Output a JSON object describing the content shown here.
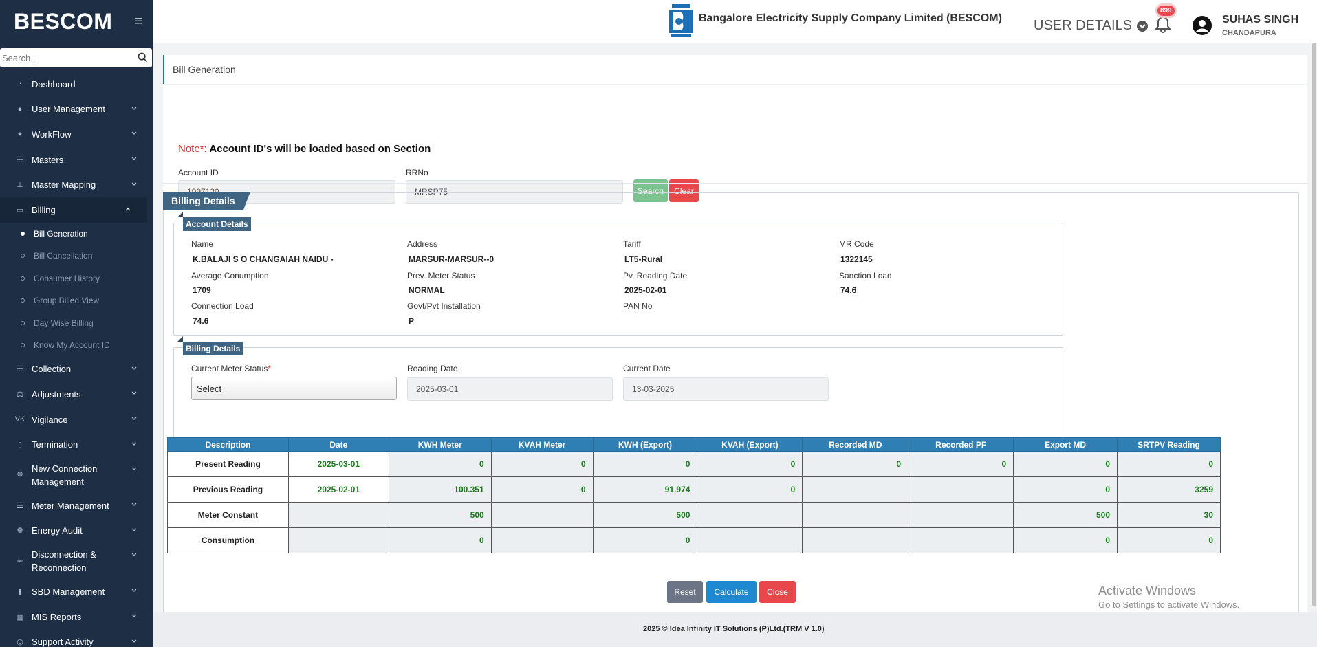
{
  "sidebar": {
    "brand": "BESCOM",
    "search_placeholder": "Search..",
    "items": [
      {
        "label": "Dashboard",
        "icon": "dashboard-icon"
      },
      {
        "label": "User Management",
        "icon": "user-icon"
      },
      {
        "label": "WorkFlow",
        "icon": "user-icon"
      },
      {
        "label": "Masters",
        "icon": "list-icon"
      },
      {
        "label": "Master Mapping",
        "icon": "sitemap-icon"
      },
      {
        "label": "Billing",
        "icon": "monitor-icon"
      },
      {
        "label": "Collection",
        "icon": "list-icon"
      },
      {
        "label": "Adjustments",
        "icon": "scale-icon"
      },
      {
        "label": "Vigilance",
        "icon": "vk-icon"
      },
      {
        "label": "Termination",
        "icon": "trash-icon"
      },
      {
        "label": "New Connection Management",
        "icon": "plus-circle-icon"
      },
      {
        "label": "Meter Management",
        "icon": "list-icon"
      },
      {
        "label": "Energy Audit",
        "icon": "cogs-icon"
      },
      {
        "label": "Disconnection & Reconnection",
        "icon": "link-icon"
      },
      {
        "label": "SBD Management",
        "icon": "sd-card-icon"
      },
      {
        "label": "MIS Reports",
        "icon": "bar-chart-icon"
      },
      {
        "label": "Support Activity",
        "icon": "support-icon"
      }
    ],
    "billing_sub": [
      "Bill Generation",
      "Bill Cancellation",
      "Consumer History",
      "Group Billed View",
      "Day Wise Billing",
      "Know My Account ID"
    ]
  },
  "header": {
    "company": "Bangalore Electricity Supply Company Limited (BESCOM)",
    "user_details": "USER DETAILS",
    "notifications": "899",
    "user_name": "SUHAS SINGH",
    "user_location": "CHANDAPURA"
  },
  "page": {
    "breadcrumb": "Bill Generation",
    "note_prefix": "Note*:",
    "note_text": " Account ID's will be loaded based on Section",
    "account_id_label": "Account ID",
    "account_id_value": "1997120",
    "rrno_label": "RRNo",
    "rrno_value": "MRSP75",
    "search_btn": "Search",
    "clear_btn": "Clear"
  },
  "billing": {
    "title": "Billing Details",
    "account_section_title": "Account Details",
    "account": [
      {
        "label": "Name",
        "value": "K.BALAJI S O CHANGAIAH NAIDU -"
      },
      {
        "label": "Address",
        "value": "MARSUR-MARSUR--0"
      },
      {
        "label": "Tariff",
        "value": "LT5-Rural"
      },
      {
        "label": "MR Code",
        "value": "1322145"
      },
      {
        "label": "Average Conumption",
        "value": "1709"
      },
      {
        "label": "Prev. Meter Status",
        "value": "NORMAL"
      },
      {
        "label": "Pv. Reading Date",
        "value": "2025-02-01"
      },
      {
        "label": "Sanction Load",
        "value": "74.6"
      },
      {
        "label": "Connection Load",
        "value": "74.6"
      },
      {
        "label": "Govt/Pvt Installation",
        "value": "P"
      },
      {
        "label": "PAN No",
        "value": ""
      }
    ],
    "billing_section_title": "Billing Details",
    "meter_status_label": "Current Meter Status",
    "meter_status_req": "*",
    "meter_status_value": "Select",
    "reading_date_label": "Reading Date",
    "reading_date_value": "2025-03-01",
    "current_date_label": "Current Date",
    "current_date_value": "13-03-2025",
    "table": {
      "headers": [
        "Description",
        "Date",
        "KWH Meter",
        "KVAH Meter",
        "KWH (Export)",
        "KVAH (Export)",
        "Recorded MD",
        "Recorded PF",
        "Export MD",
        "SRTPV Reading"
      ],
      "rows": [
        [
          "Present Reading",
          "2025-03-01",
          "0",
          "0",
          "0",
          "0",
          "0",
          "0",
          "0",
          "0"
        ],
        [
          "Previous Reading",
          "2025-02-01",
          "100.351",
          "0",
          "91.974",
          "0",
          "",
          "",
          "0",
          "3259"
        ],
        [
          "Meter Constant",
          "",
          "500",
          "",
          "500",
          "",
          "",
          "",
          "500",
          "30"
        ],
        [
          "Consumption",
          "",
          "0",
          "",
          "0",
          "",
          "",
          "",
          "0",
          "0"
        ]
      ]
    },
    "reset_btn": "Reset",
    "calculate_btn": "Calculate",
    "close_btn": "Close"
  },
  "watermark": {
    "line1": "Activate Windows",
    "line2": "Go to Settings to activate Windows."
  },
  "footer": {
    "text": "2025 © Idea Infinity IT Solutions (P)Ltd.(TRM V 1.0)"
  },
  "colors": {
    "sidebar": "#1e2f45",
    "accent": "#3f6583",
    "table_header": "#2f7fb5",
    "danger": "#e8474c",
    "success": "#7cc48f",
    "primary": "#1e88d0"
  }
}
